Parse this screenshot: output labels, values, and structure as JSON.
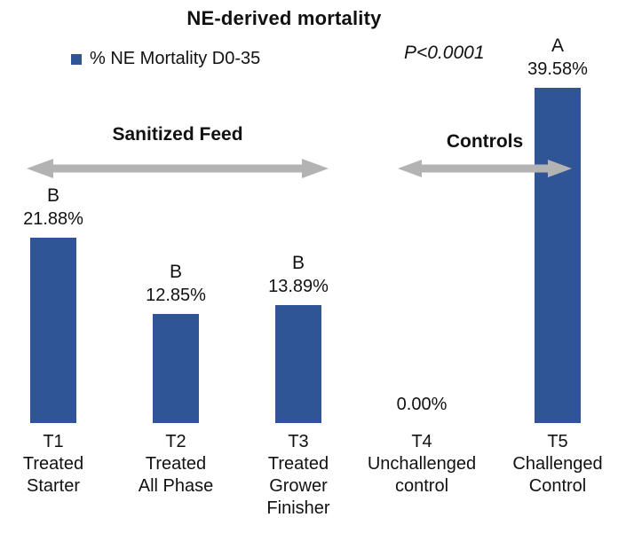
{
  "title": "NE-derived mortality",
  "legend": {
    "label": "% NE Mortality D0-35"
  },
  "p_value": "P<0.0001",
  "annotations": {
    "sanitized_feed": "Sanitized Feed",
    "controls": "Controls"
  },
  "colors": {
    "bar": "#2F5597",
    "arrow": "#B3B3B3",
    "text": "#111111"
  },
  "chart_data": {
    "type": "bar",
    "title": "NE-derived mortality",
    "series_name": "% NE Mortality D0-35",
    "p_value": "P<0.0001",
    "categories": [
      "T1 Treated Starter",
      "T2 Treated All Phase",
      "T3 Treated Grower Finisher",
      "T4 Unchallenged control",
      "T5 Challenged Control"
    ],
    "values": [
      21.88,
      12.85,
      13.89,
      0.0,
      39.58
    ],
    "value_labels": [
      "21.88%",
      "12.85%",
      "13.89%",
      "0.00%",
      "39.58%"
    ],
    "sig_letters": [
      "B",
      "B",
      "B",
      "",
      "A"
    ],
    "x_tick_lines": [
      [
        "T1",
        "Treated",
        "Starter"
      ],
      [
        "T2",
        "Treated",
        "All Phase"
      ],
      [
        "T3",
        "Treated",
        "Grower",
        "Finisher"
      ],
      [
        "T4",
        "Unchallenged",
        "control"
      ],
      [
        "T5",
        "Challenged",
        "Control"
      ]
    ],
    "groups": [
      {
        "label": "Sanitized Feed",
        "span": [
          "T1",
          "T3"
        ]
      },
      {
        "label": "Controls",
        "span": [
          "T4",
          "T5"
        ]
      }
    ],
    "ylim": [
      0,
      45
    ],
    "grid": false,
    "legend_position": "top-left"
  }
}
